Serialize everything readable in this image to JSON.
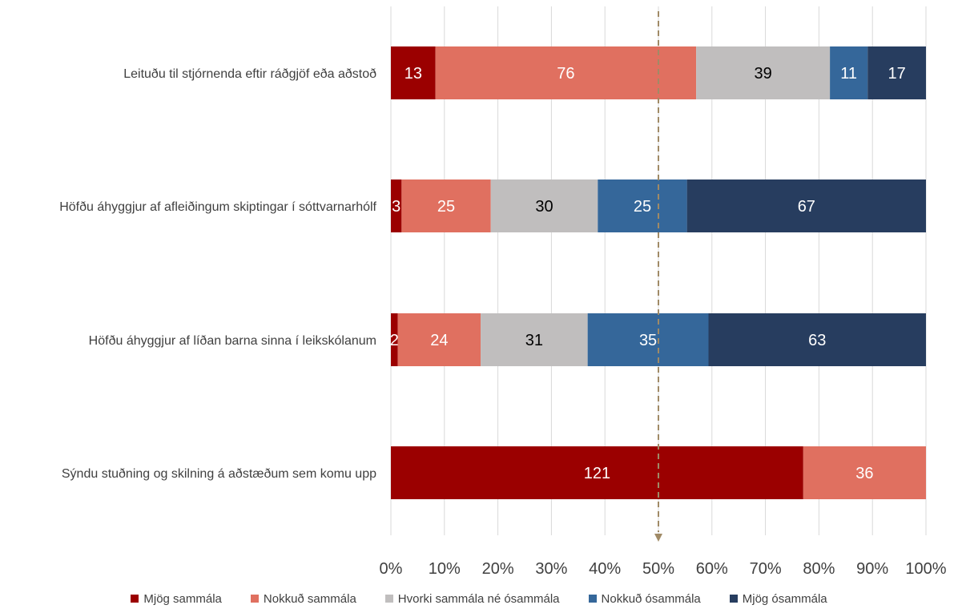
{
  "chart_data": {
    "type": "bar",
    "orientation": "horizontal",
    "stacked": "percent",
    "categories": [
      "Leituðu til stjórnenda eftir ráðgjöf eða aðstoð",
      "Höfðu áhyggjur af afleiðingum skiptingar í sóttvarnarhólf",
      "Höfðu áhyggjur af líðan barna sinna í leikskólanum",
      "Sýndu stuðning og skilning á aðstæðum sem komu upp"
    ],
    "series": [
      {
        "name": "Mjög sammála",
        "color": "#9b0000",
        "label_color": "#ffffff",
        "values": [
          13,
          3,
          2,
          121
        ]
      },
      {
        "name": "Nokkuð sammála",
        "color": "#e07060",
        "label_color": "#ffffff",
        "values": [
          76,
          25,
          24,
          36
        ]
      },
      {
        "name": "Hvorki sammála né ósammála",
        "color": "#c0bebe",
        "label_color": "#000000",
        "values": [
          39,
          30,
          31,
          0
        ]
      },
      {
        "name": "Nokkuð ósammála",
        "color": "#35679a",
        "label_color": "#ffffff",
        "values": [
          11,
          25,
          35,
          0
        ]
      },
      {
        "name": "Mjög ósammála",
        "color": "#273d5f",
        "label_color": "#ffffff",
        "values": [
          17,
          67,
          63,
          0
        ]
      }
    ],
    "x_ticks": [
      "0%",
      "10%",
      "20%",
      "30%",
      "40%",
      "50%",
      "60%",
      "70%",
      "80%",
      "90%",
      "100%"
    ],
    "xlim": [
      0,
      100
    ],
    "reference_line": {
      "value": 50,
      "style": "dashed-arrow",
      "color": "#a08a66"
    },
    "grid": "vertical",
    "legend_position": "bottom"
  }
}
